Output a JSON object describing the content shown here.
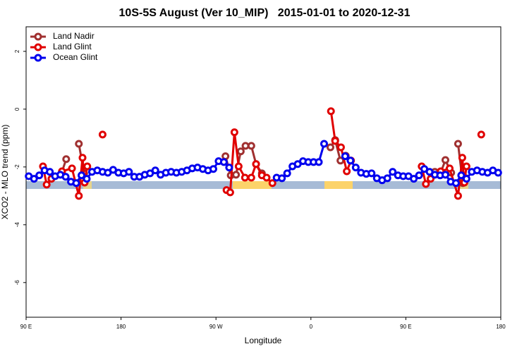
{
  "chart_data": {
    "type": "line",
    "title": "10S-5S August (Ver 10_MIP)   2015-01-01 to 2020-12-31",
    "x_label": "Longitude",
    "y_label": "XCO2 - MLO trend (ppm)",
    "xlim": [
      90,
      540
    ],
    "ylim": [
      -7.2,
      2.85
    ],
    "xticks": [
      {
        "value": 90,
        "label": "90 E"
      },
      180,
      {
        "value": 270,
        "label": "90 W"
      },
      {
        "value": 360,
        "label": "0"
      },
      {
        "value": 450,
        "label": "90 E"
      },
      {
        "value": 540,
        "label": "180"
      }
    ],
    "yticks": [
      -6,
      -4,
      -2,
      0,
      2
    ],
    "legend": "top-left",
    "series": [
      {
        "name": "Land Nadir",
        "color": "#a03030",
        "x": [
          124,
          128,
          null,
          140,
          145,
          null,
          279,
          284,
          289,
          293.5,
          298,
          303.5,
          308,
          313.5,
          null,
          378.5,
          383,
          388,
          393,
          null,
          477.5,
          483,
          487.5,
          493,
          null,
          499.5,
          504,
          507
        ],
        "values": [
          -2.17,
          -1.73,
          null,
          -1.2,
          -2.22,
          null,
          -1.63,
          -2.29,
          -2.27,
          -1.46,
          -1.27,
          -1.27,
          -1.9,
          -2.22,
          null,
          -1.32,
          -1.07,
          -1.78,
          -1.61,
          null,
          -2.17,
          -2.2,
          -1.76,
          -2.2,
          null,
          -1.2,
          -2.56,
          -2.39
        ]
      },
      {
        "name": "Land Glint",
        "color": "#e00000",
        "x": [
          106,
          109.5,
          114,
          null,
          124,
          133.5,
          140,
          143.5,
          145.5,
          148,
          null,
          162.5,
          null,
          280,
          283.5,
          287.5,
          291.5,
          297.5,
          303.5,
          308,
          313.5,
          318,
          323.5,
          null,
          379,
          383,
          388.5,
          394,
          398,
          null,
          465,
          469,
          473.5,
          null,
          483,
          491.5,
          499.5,
          503.5,
          505.5,
          507.5,
          null,
          521.5
        ],
        "values": [
          -1.98,
          -2.61,
          -2.41,
          null,
          -2.15,
          -2.05,
          -3.0,
          -1.68,
          -2.54,
          -1.98,
          null,
          -0.88,
          null,
          -2.8,
          -2.88,
          -0.8,
          -1.98,
          -2.37,
          -2.37,
          -1.9,
          -2.29,
          -2.37,
          -2.56,
          null,
          -0.07,
          -1.1,
          -1.32,
          -2.15,
          -1.78,
          null,
          -1.98,
          -2.59,
          -2.41,
          null,
          -2.15,
          -2.05,
          -3.0,
          -1.68,
          -2.54,
          -1.98,
          null,
          -0.88
        ]
      },
      {
        "name": "Ocean Glint",
        "color": "#0000ee",
        "x": [
          92.5,
          97.5,
          102.5,
          107.5,
          112.5,
          117.5,
          122.5,
          127.5,
          132.5,
          137.5,
          142.5,
          147.5,
          152.5,
          157.5,
          162.5,
          167.5,
          172.5,
          177.5,
          182.5,
          187.5,
          192.5,
          197.5,
          202.5,
          207.5,
          212.5,
          217.5,
          222.5,
          227.5,
          232.5,
          237.5,
          242.5,
          247.5,
          252.5,
          257.5,
          262.5,
          267.5,
          272.5,
          277.5,
          282.5,
          null,
          327.5,
          332.5,
          337.5,
          342.5,
          347.5,
          352.5,
          357.5,
          362.5,
          367.5,
          372.5,
          null,
          392.5,
          397.5,
          402.5,
          407.5,
          412.5,
          417.5,
          422.5,
          427.5,
          432.5,
          437.5,
          442.5,
          447.5,
          452.5,
          457.5,
          462.5,
          467.5,
          472.5,
          477.5,
          482.5,
          487.5,
          492.5,
          497.5,
          502.5,
          507.5,
          512.5,
          517.5,
          522.5,
          527.5,
          532.5,
          537.5
        ],
        "values": [
          -2.32,
          -2.41,
          -2.29,
          -2.12,
          -2.17,
          -2.32,
          -2.27,
          -2.34,
          -2.51,
          -2.56,
          -2.29,
          -2.41,
          -2.17,
          -2.12,
          -2.17,
          -2.2,
          -2.1,
          -2.2,
          -2.22,
          -2.17,
          -2.34,
          -2.34,
          -2.27,
          -2.22,
          -2.12,
          -2.27,
          -2.2,
          -2.17,
          -2.2,
          -2.17,
          -2.12,
          -2.05,
          -2.02,
          -2.07,
          -2.12,
          -2.07,
          -1.8,
          -1.83,
          -2.02,
          null,
          -2.37,
          -2.39,
          -2.22,
          -1.98,
          -1.9,
          -1.8,
          -1.83,
          -1.83,
          -1.83,
          -1.2,
          null,
          -1.63,
          -1.78,
          -2.02,
          -2.2,
          -2.24,
          -2.22,
          -2.39,
          -2.46,
          -2.39,
          -2.17,
          -2.29,
          -2.32,
          -2.32,
          -2.41,
          -2.29,
          -2.07,
          -2.17,
          -2.27,
          -2.29,
          -2.27,
          -2.51,
          -2.56,
          -2.29,
          -2.41,
          -2.17,
          -2.12,
          -2.17,
          -2.2,
          -2.12,
          -2.2
        ]
      }
    ]
  }
}
